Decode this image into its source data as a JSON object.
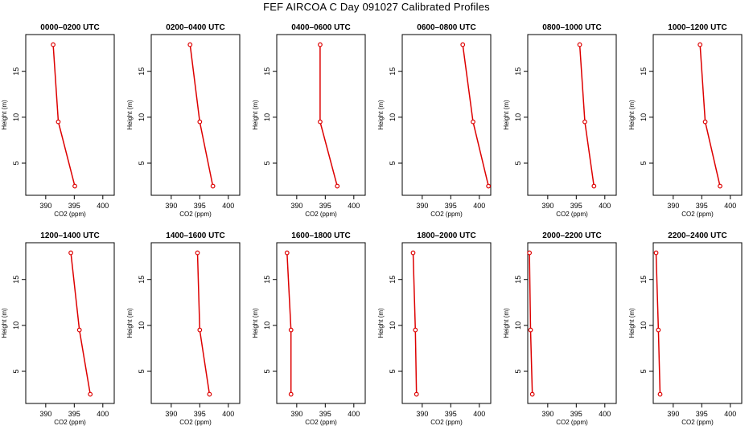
{
  "figure_title": "FEF AIRCOA C  Day 091027  Calibrated Profiles",
  "colors": {
    "series": "#dd0000",
    "axis": "#000000",
    "background": "#ffffff"
  },
  "chart_data": [
    {
      "type": "line",
      "title": "0000–0200 UTC",
      "xlabel": "CO2 (ppm)",
      "ylabel": "Height (m)",
      "xlim": [
        386.5,
        402
      ],
      "ylim": [
        1.5,
        19
      ],
      "xticks": [
        390,
        395,
        400
      ],
      "yticks": [
        5,
        10,
        15
      ],
      "series": [
        {
          "name": "profile",
          "x": [
            395.1,
            392.2,
            391.3
          ],
          "y": [
            2.5,
            9.5,
            17.9
          ]
        }
      ]
    },
    {
      "type": "line",
      "title": "0200–0400 UTC",
      "xlabel": "CO2 (ppm)",
      "ylabel": "Height (m)",
      "xlim": [
        386.5,
        402
      ],
      "ylim": [
        1.5,
        19
      ],
      "xticks": [
        390,
        395,
        400
      ],
      "yticks": [
        5,
        10,
        15
      ],
      "series": [
        {
          "name": "profile",
          "x": [
            397.3,
            395.0,
            393.3
          ],
          "y": [
            2.5,
            9.5,
            17.9
          ]
        }
      ]
    },
    {
      "type": "line",
      "title": "0400–0600 UTC",
      "xlabel": "CO2 (ppm)",
      "ylabel": "Height (m)",
      "xlim": [
        386.5,
        402
      ],
      "ylim": [
        1.5,
        19
      ],
      "xticks": [
        390,
        395,
        400
      ],
      "yticks": [
        5,
        10,
        15
      ],
      "series": [
        {
          "name": "profile",
          "x": [
            397.1,
            394.1,
            394.1
          ],
          "y": [
            2.5,
            9.5,
            17.9
          ]
        }
      ]
    },
    {
      "type": "line",
      "title": "0600–0800 UTC",
      "xlabel": "CO2 (ppm)",
      "ylabel": "Height (m)",
      "xlim": [
        386.5,
        402
      ],
      "ylim": [
        1.5,
        19
      ],
      "xticks": [
        390,
        395,
        400
      ],
      "yticks": [
        5,
        10,
        15
      ],
      "series": [
        {
          "name": "profile",
          "x": [
            401.6,
            398.9,
            397.1
          ],
          "y": [
            2.5,
            9.5,
            17.9
          ]
        }
      ]
    },
    {
      "type": "line",
      "title": "0800–1000 UTC",
      "xlabel": "CO2 (ppm)",
      "ylabel": "Height (m)",
      "xlim": [
        386.5,
        402
      ],
      "ylim": [
        1.5,
        19
      ],
      "xticks": [
        390,
        395,
        400
      ],
      "yticks": [
        5,
        10,
        15
      ],
      "series": [
        {
          "name": "profile",
          "x": [
            398.1,
            396.5,
            395.6
          ],
          "y": [
            2.5,
            9.5,
            17.9
          ]
        }
      ]
    },
    {
      "type": "line",
      "title": "1000–1200 UTC",
      "xlabel": "CO2 (ppm)",
      "ylabel": "Height (m)",
      "xlim": [
        386.5,
        402
      ],
      "ylim": [
        1.5,
        19
      ],
      "xticks": [
        390,
        395,
        400
      ],
      "yticks": [
        5,
        10,
        15
      ],
      "series": [
        {
          "name": "profile",
          "x": [
            398.2,
            395.6,
            394.7
          ],
          "y": [
            2.5,
            9.5,
            17.9
          ]
        }
      ]
    },
    {
      "type": "line",
      "title": "1200–1400 UTC",
      "xlabel": "CO2 (ppm)",
      "ylabel": "Height (m)",
      "xlim": [
        386.5,
        402
      ],
      "ylim": [
        1.5,
        19
      ],
      "xticks": [
        390,
        395,
        400
      ],
      "yticks": [
        5,
        10,
        15
      ],
      "series": [
        {
          "name": "profile",
          "x": [
            397.8,
            395.9,
            394.4
          ],
          "y": [
            2.5,
            9.5,
            17.9
          ]
        }
      ]
    },
    {
      "type": "line",
      "title": "1400–1600 UTC",
      "xlabel": "CO2 (ppm)",
      "ylabel": "Height (m)",
      "xlim": [
        386.5,
        402
      ],
      "ylim": [
        1.5,
        19
      ],
      "xticks": [
        390,
        395,
        400
      ],
      "yticks": [
        5,
        10,
        15
      ],
      "series": [
        {
          "name": "profile",
          "x": [
            396.7,
            395.0,
            394.6
          ],
          "y": [
            2.5,
            9.5,
            17.9
          ]
        }
      ]
    },
    {
      "type": "line",
      "title": "1600–1800 UTC",
      "xlabel": "CO2 (ppm)",
      "ylabel": "Height (m)",
      "xlim": [
        386.5,
        402
      ],
      "ylim": [
        1.5,
        19
      ],
      "xticks": [
        390,
        395,
        400
      ],
      "yticks": [
        5,
        10,
        15
      ],
      "series": [
        {
          "name": "profile",
          "x": [
            389.0,
            389.0,
            388.3
          ],
          "y": [
            2.5,
            9.5,
            17.9
          ]
        }
      ]
    },
    {
      "type": "line",
      "title": "1800–2000 UTC",
      "xlabel": "CO2 (ppm)",
      "ylabel": "Height (m)",
      "xlim": [
        386.5,
        402
      ],
      "ylim": [
        1.5,
        19
      ],
      "xticks": [
        390,
        395,
        400
      ],
      "yticks": [
        5,
        10,
        15
      ],
      "series": [
        {
          "name": "profile",
          "x": [
            389.0,
            388.8,
            388.4
          ],
          "y": [
            2.5,
            9.5,
            17.9
          ]
        }
      ]
    },
    {
      "type": "line",
      "title": "2000–2200 UTC",
      "xlabel": "CO2 (ppm)",
      "ylabel": "Height (m)",
      "xlim": [
        386.5,
        402
      ],
      "ylim": [
        1.5,
        19
      ],
      "xticks": [
        390,
        395,
        400
      ],
      "yticks": [
        5,
        10,
        15
      ],
      "series": [
        {
          "name": "profile",
          "x": [
            387.3,
            387.0,
            386.8
          ],
          "y": [
            2.5,
            9.5,
            17.9
          ]
        }
      ]
    },
    {
      "type": "line",
      "title": "2200–2400 UTC",
      "xlabel": "CO2 (ppm)",
      "ylabel": "Height (m)",
      "xlim": [
        386.5,
        402
      ],
      "ylim": [
        1.5,
        19
      ],
      "xticks": [
        390,
        395,
        400
      ],
      "yticks": [
        5,
        10,
        15
      ],
      "series": [
        {
          "name": "profile",
          "x": [
            387.7,
            387.4,
            387.0
          ],
          "y": [
            2.5,
            9.5,
            17.9
          ]
        }
      ]
    }
  ]
}
